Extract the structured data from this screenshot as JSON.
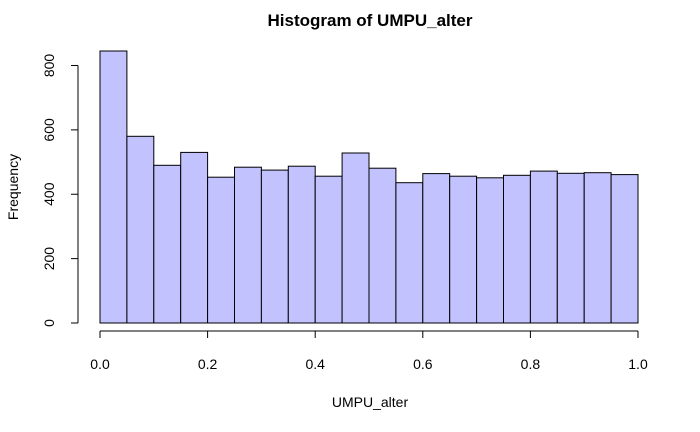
{
  "chart_data": {
    "type": "bar",
    "title": "Histogram of UMPU_alter",
    "xlabel": "UMPU_alter",
    "ylabel": "Frequency",
    "bin_edges": [
      0.0,
      0.05,
      0.1,
      0.15,
      0.2,
      0.25,
      0.3,
      0.35,
      0.4,
      0.45,
      0.5,
      0.55,
      0.6,
      0.65,
      0.7,
      0.75,
      0.8,
      0.85,
      0.9,
      0.95,
      1.0
    ],
    "values": [
      845,
      580,
      490,
      530,
      453,
      484,
      475,
      487,
      456,
      528,
      481,
      436,
      464,
      456,
      451,
      459,
      472,
      465,
      467,
      461
    ],
    "xlim": [
      0,
      1
    ],
    "ylim": [
      0,
      845
    ],
    "x_ticks": [
      "0.0",
      "0.2",
      "0.4",
      "0.6",
      "0.8",
      "1.0"
    ],
    "y_ticks": [
      "0",
      "200",
      "400",
      "600",
      "800"
    ],
    "bar_color": "#c2c2ff",
    "grid": false
  }
}
